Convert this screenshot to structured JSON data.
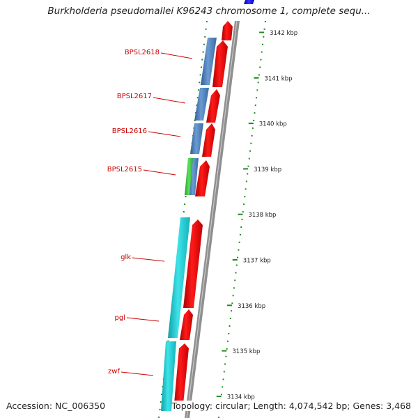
{
  "title": "Burkholderia pseudomallei K96243 chromosome 1, complete sequ...",
  "footer": {
    "accession_label": "Accession:",
    "accession": "NC_006350",
    "topology_label": "Topology:",
    "topology": "circular",
    "length_label": "Length:",
    "length": "4,074,542 bp",
    "genes_label": "Genes:",
    "genes": "3,468"
  },
  "scale": {
    "unit": "kbp",
    "ticks": [
      3142,
      3141,
      3140,
      3139,
      3138,
      3137,
      3136,
      3135,
      3134
    ]
  },
  "gene_labels": [
    "BPSL2618",
    "BPSL2617",
    "BPSL2616",
    "BPSL2615",
    "glk",
    "pgl",
    "zwf"
  ],
  "colors": {
    "forward_cds": "#ee0000",
    "reverse_blue": "#4a7fb8",
    "reverse_cyan": "#19c9cf",
    "reverse_green": "#3cc43c",
    "top_blue": "#0000ee",
    "label_text": "#cc0000",
    "tick_green": "#1f8a1f",
    "backbone": "#888888"
  }
}
